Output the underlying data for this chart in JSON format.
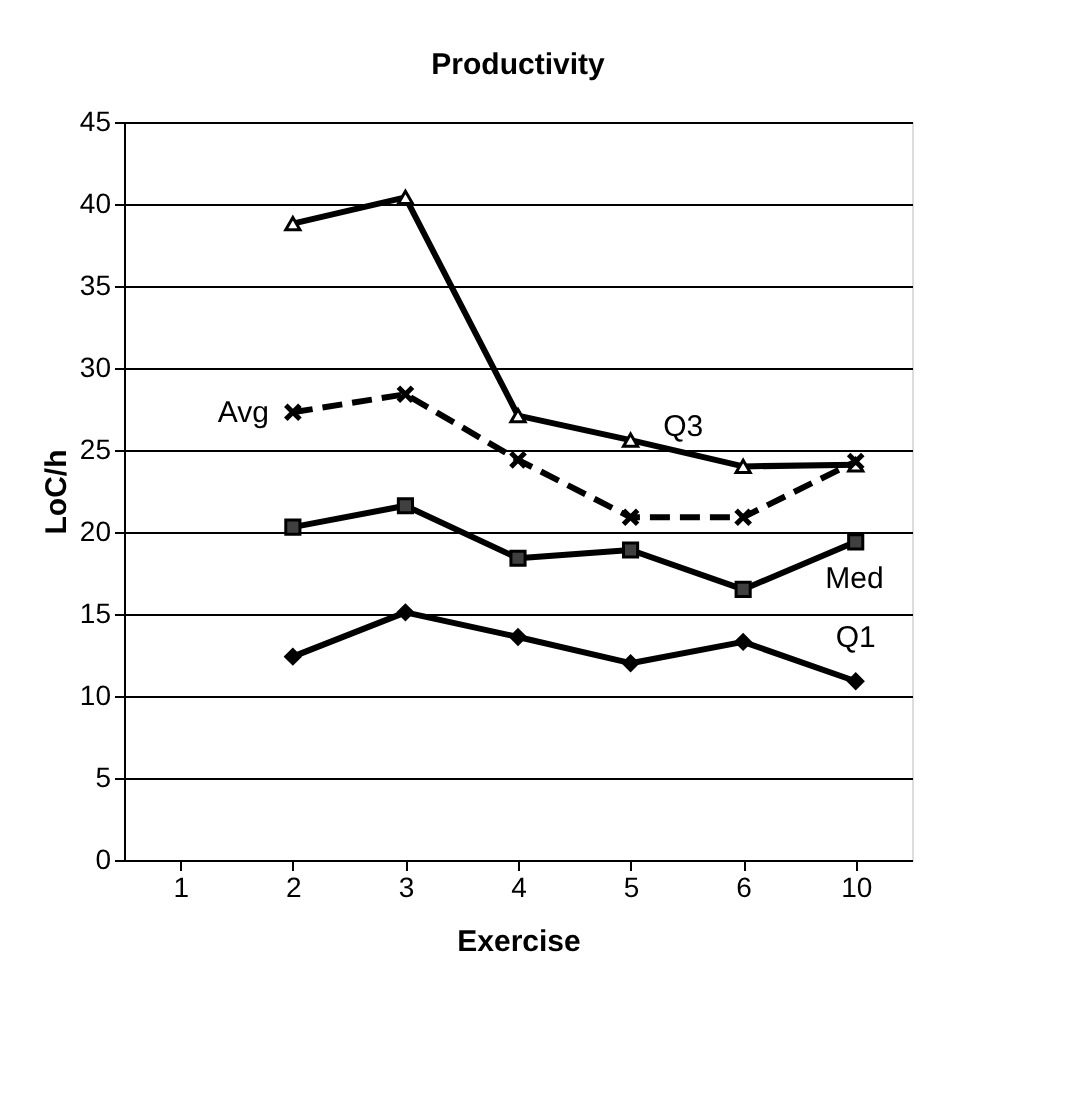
{
  "chart_data": {
    "type": "line",
    "title": "Productivity",
    "xlabel": "Exercise",
    "ylabel": "LoC/h",
    "categories": [
      "1",
      "2",
      "3",
      "4",
      "5",
      "6",
      "10"
    ],
    "series": [
      {
        "name": "Q3",
        "color": "#000000",
        "marker": "triangle",
        "line_style": "solid",
        "values": [
          null,
          38.8,
          40.4,
          27.1,
          25.6,
          24.0,
          24.1
        ]
      },
      {
        "name": "Avg",
        "color": "#000000",
        "marker": "cross",
        "line_style": "dashed",
        "values": [
          null,
          27.3,
          28.4,
          24.4,
          20.9,
          20.9,
          24.3
        ]
      },
      {
        "name": "Med",
        "color": "#000000",
        "marker": "square",
        "line_style": "solid",
        "values": [
          null,
          20.3,
          21.6,
          18.4,
          18.9,
          16.5,
          19.4
        ]
      },
      {
        "name": "Q1",
        "color": "#000000",
        "marker": "diamond",
        "line_style": "solid",
        "values": [
          null,
          12.4,
          15.1,
          13.6,
          12.0,
          13.3,
          10.9
        ]
      }
    ],
    "ylim": [
      0,
      45
    ],
    "yticks": [
      0,
      5,
      10,
      15,
      20,
      25,
      30,
      35,
      40,
      45
    ],
    "grid": "y"
  }
}
